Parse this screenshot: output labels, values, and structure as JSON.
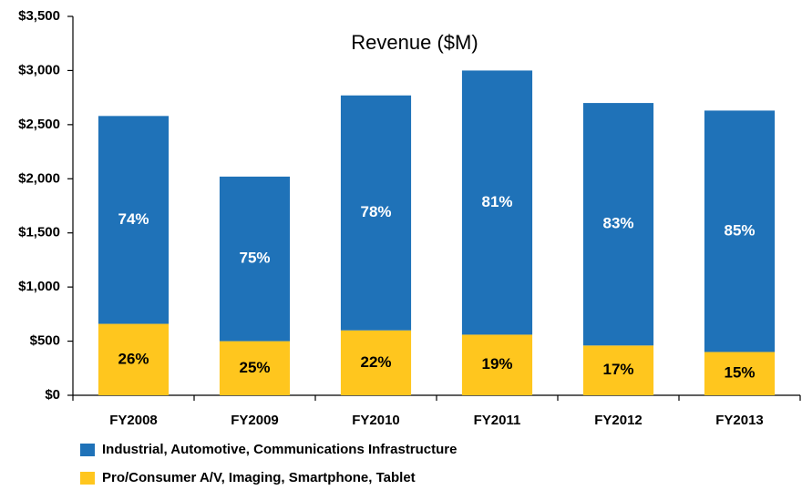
{
  "chart_data": {
    "type": "stacked_bar",
    "title": "Revenue ($M)",
    "categories": [
      "FY2008",
      "FY2009",
      "FY2010",
      "FY2011",
      "FY2012",
      "FY2013"
    ],
    "series": [
      {
        "name": "Pro/Consumer A/V, Imaging, Smartphone, Tablet",
        "color": "#ffc61e",
        "values": [
          660,
          500,
          600,
          560,
          460,
          400
        ],
        "share_labels": [
          "26%",
          "25%",
          "22%",
          "19%",
          "17%",
          "15%"
        ]
      },
      {
        "name": "Industrial, Automotive, Communications Infrastructure",
        "color": "#1f72b8",
        "values": [
          1920,
          1520,
          2170,
          2440,
          2240,
          2230
        ],
        "share_labels": [
          "74%",
          "75%",
          "78%",
          "81%",
          "83%",
          "85%"
        ]
      }
    ],
    "legend_order": [
      1,
      0
    ],
    "ylim": [
      0,
      3500
    ],
    "yticks": [
      {
        "value": 0,
        "label": "$0"
      },
      {
        "value": 500,
        "label": "$500"
      },
      {
        "value": 1000,
        "label": "$1,000"
      },
      {
        "value": 1500,
        "label": "$1,500"
      },
      {
        "value": 2000,
        "label": "$2,000"
      },
      {
        "value": 2500,
        "label": "$2,500"
      },
      {
        "value": 3000,
        "label": "$3,000"
      },
      {
        "value": 3500,
        "label": "$3,500"
      }
    ],
    "grid": false
  }
}
